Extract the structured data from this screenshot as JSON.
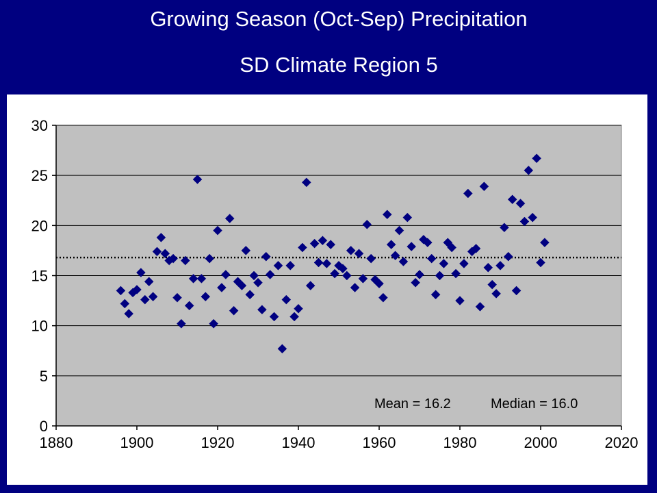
{
  "title": "Growing Season (Oct-Sep) Precipitation",
  "subtitle": "SD Climate Region 5",
  "annotation_mean": "Mean = 16.2",
  "annotation_median": "Median = 16.0",
  "colors": {
    "background": "#000080",
    "plot_area": "#c0c0c0",
    "marker": "#000080",
    "reference_line": "#000000"
  },
  "chart_data": {
    "type": "scatter",
    "title": "Growing Season (Oct-Sep) Precipitation",
    "subtitle": "SD Climate Region 5",
    "xlabel": "",
    "ylabel": "",
    "xlim": [
      1880,
      2020
    ],
    "ylim": [
      0,
      30
    ],
    "xticks": [
      1880,
      1900,
      1920,
      1940,
      1960,
      1980,
      2000,
      2020
    ],
    "yticks": [
      0,
      5,
      10,
      15,
      20,
      25,
      30
    ],
    "grid": "horizontal",
    "marker": "diamond",
    "reference_line": {
      "value": 16.8,
      "style": "dotted"
    },
    "mean": 16.2,
    "median": 16.0,
    "series": [
      {
        "points": [
          [
            1896,
            13.5
          ],
          [
            1897,
            12.2
          ],
          [
            1898,
            11.2
          ],
          [
            1899,
            13.3
          ],
          [
            1900,
            13.6
          ],
          [
            1901,
            15.3
          ],
          [
            1902,
            12.6
          ],
          [
            1903,
            14.4
          ],
          [
            1904,
            12.9
          ],
          [
            1905,
            17.4
          ],
          [
            1906,
            18.8
          ],
          [
            1907,
            17.2
          ],
          [
            1908,
            16.5
          ],
          [
            1909,
            16.7
          ],
          [
            1910,
            12.8
          ],
          [
            1911,
            10.2
          ],
          [
            1912,
            16.5
          ],
          [
            1913,
            12.0
          ],
          [
            1914,
            14.7
          ],
          [
            1915,
            24.6
          ],
          [
            1916,
            14.7
          ],
          [
            1917,
            12.9
          ],
          [
            1918,
            16.7
          ],
          [
            1919,
            10.2
          ],
          [
            1920,
            19.5
          ],
          [
            1921,
            13.8
          ],
          [
            1922,
            15.1
          ],
          [
            1923,
            20.7
          ],
          [
            1924,
            11.5
          ],
          [
            1925,
            14.4
          ],
          [
            1926,
            14.0
          ],
          [
            1927,
            17.5
          ],
          [
            1928,
            13.1
          ],
          [
            1929,
            15.0
          ],
          [
            1930,
            14.3
          ],
          [
            1931,
            11.6
          ],
          [
            1932,
            16.9
          ],
          [
            1933,
            15.1
          ],
          [
            1934,
            10.9
          ],
          [
            1935,
            16.0
          ],
          [
            1936,
            7.7
          ],
          [
            1937,
            12.6
          ],
          [
            1938,
            16.0
          ],
          [
            1939,
            10.9
          ],
          [
            1940,
            11.7
          ],
          [
            1941,
            17.8
          ],
          [
            1942,
            24.3
          ],
          [
            1943,
            14.0
          ],
          [
            1944,
            18.2
          ],
          [
            1945,
            16.3
          ],
          [
            1946,
            18.5
          ],
          [
            1947,
            16.2
          ],
          [
            1948,
            18.1
          ],
          [
            1949,
            15.2
          ],
          [
            1950,
            16.0
          ],
          [
            1951,
            15.7
          ],
          [
            1952,
            15.0
          ],
          [
            1953,
            17.5
          ],
          [
            1954,
            13.8
          ],
          [
            1955,
            17.2
          ],
          [
            1956,
            14.7
          ],
          [
            1957,
            20.1
          ],
          [
            1958,
            16.7
          ],
          [
            1959,
            14.6
          ],
          [
            1960,
            14.2
          ],
          [
            1961,
            12.8
          ],
          [
            1962,
            21.1
          ],
          [
            1963,
            18.1
          ],
          [
            1964,
            17.0
          ],
          [
            1965,
            19.5
          ],
          [
            1966,
            16.4
          ],
          [
            1967,
            20.8
          ],
          [
            1968,
            17.9
          ],
          [
            1969,
            14.3
          ],
          [
            1970,
            15.1
          ],
          [
            1971,
            18.6
          ],
          [
            1972,
            18.3
          ],
          [
            1973,
            16.7
          ],
          [
            1974,
            13.1
          ],
          [
            1975,
            15.0
          ],
          [
            1976,
            16.2
          ],
          [
            1977,
            18.3
          ],
          [
            1978,
            17.8
          ],
          [
            1979,
            15.2
          ],
          [
            1980,
            12.5
          ],
          [
            1981,
            16.2
          ],
          [
            1982,
            23.2
          ],
          [
            1983,
            17.4
          ],
          [
            1984,
            17.7
          ],
          [
            1985,
            11.9
          ],
          [
            1986,
            23.9
          ],
          [
            1987,
            15.8
          ],
          [
            1988,
            14.1
          ],
          [
            1989,
            13.2
          ],
          [
            1990,
            16.0
          ],
          [
            1991,
            19.8
          ],
          [
            1992,
            16.9
          ],
          [
            1993,
            22.6
          ],
          [
            1994,
            13.5
          ],
          [
            1995,
            22.2
          ],
          [
            1996,
            20.4
          ],
          [
            1997,
            25.5
          ],
          [
            1998,
            20.8
          ],
          [
            1999,
            26.7
          ],
          [
            2000,
            16.3
          ],
          [
            2001,
            18.3
          ]
        ]
      }
    ]
  }
}
